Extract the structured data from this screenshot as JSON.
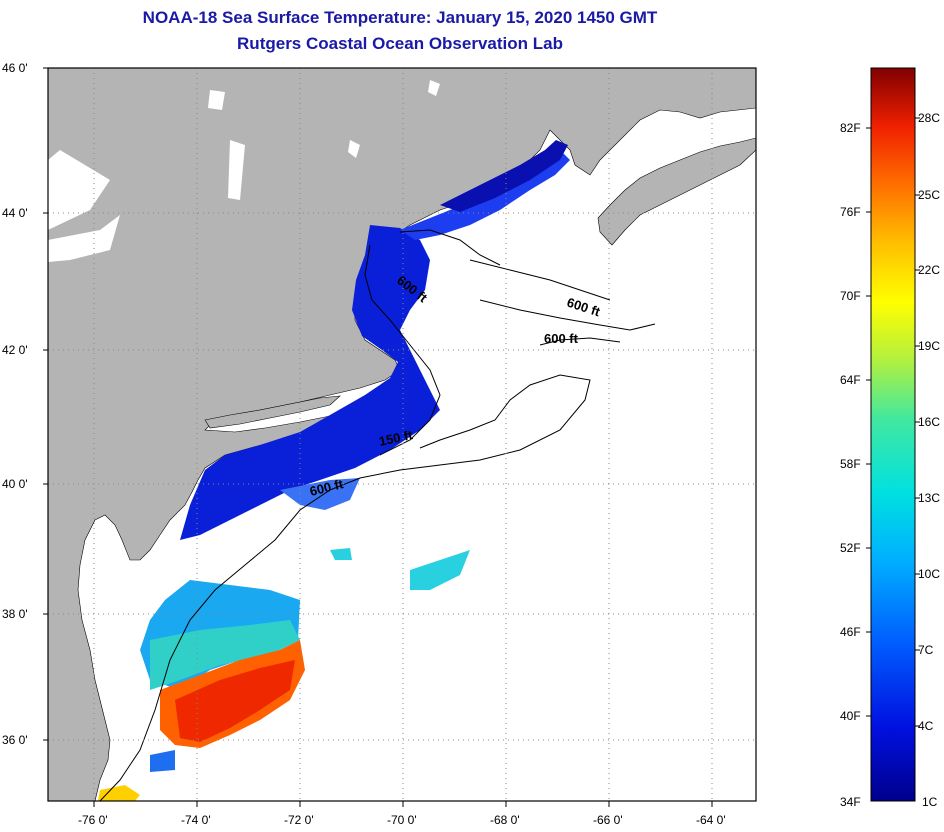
{
  "header": {
    "title": "NOAA-18 Sea Surface Temperature:  January 15, 2020 1450 GMT",
    "subtitle": "Rutgers Coastal Ocean Observation Lab"
  },
  "map": {
    "lat_labels": [
      "46 0'",
      "44 0'",
      "42 0'",
      "40 0'",
      "38 0'",
      "36 0'"
    ],
    "lon_labels": [
      "-76 0'",
      "-74 0'",
      "-72 0'",
      "-70 0'",
      "-68 0'",
      "-66 0'",
      "-64 0'"
    ],
    "contour_labels": [
      "600 ft",
      "600 ft",
      "600 ft",
      "150 ft",
      "600 ft"
    ],
    "colors": {
      "land": "#b4b4b4",
      "water_nodata": "#ffffff",
      "grid": "#888888"
    }
  },
  "colorbar": {
    "fahrenheit": [
      "82F",
      "76F",
      "70F",
      "64F",
      "58F",
      "52F",
      "46F",
      "40F",
      "34F"
    ],
    "celsius": [
      "28C",
      "25C",
      "22C",
      "19C",
      "16C",
      "13C",
      "10C",
      "7C",
      "4C",
      "1C"
    ]
  }
}
